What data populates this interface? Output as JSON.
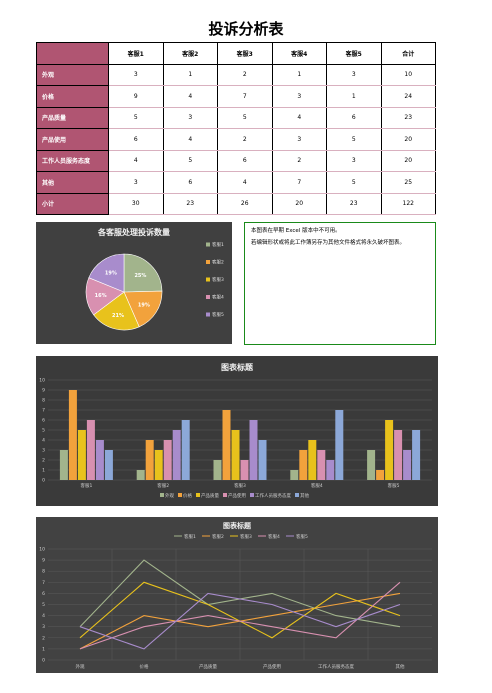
{
  "title": "投诉分析表",
  "table": {
    "headers": [
      "客服1",
      "客服2",
      "客服3",
      "客服4",
      "客服5",
      "合计"
    ],
    "rows": [
      {
        "label": "外观",
        "values": [
          3,
          1,
          2,
          1,
          3,
          10
        ]
      },
      {
        "label": "价格",
        "values": [
          9,
          4,
          7,
          3,
          1,
          24
        ]
      },
      {
        "label": "产品质量",
        "values": [
          5,
          3,
          5,
          4,
          6,
          23
        ]
      },
      {
        "label": "产品使用",
        "values": [
          6,
          4,
          2,
          3,
          5,
          20
        ]
      },
      {
        "label": "工作人员服务态度",
        "values": [
          4,
          5,
          6,
          2,
          3,
          20
        ]
      },
      {
        "label": "其他",
        "values": [
          3,
          6,
          4,
          7,
          5,
          25
        ]
      },
      {
        "label": "小计",
        "values": [
          30,
          23,
          26,
          20,
          23,
          122
        ]
      }
    ]
  },
  "note": {
    "line1": "本图表在早期 Excel 版本中不可用。",
    "line2": "若编辑形状或将此工作簿另存为其他文件格式将永久破坏图表。"
  },
  "colors": {
    "header_bg": "#b05572",
    "s1": "#a2b48c",
    "s2": "#f2a23c",
    "s3": "#e8c21c",
    "s4": "#d890b0",
    "s5": "#a88ccc",
    "s6": "#8ca8d8"
  },
  "chart_data": [
    {
      "type": "pie",
      "title": "各客服处理投诉数量",
      "categories": [
        "客服1",
        "客服2",
        "客服3",
        "客服4",
        "客服5"
      ],
      "values": [
        30,
        23,
        26,
        20,
        23
      ],
      "data_labels": [
        "25%",
        "19%",
        "21%",
        "16%",
        "19%"
      ],
      "legend": "right"
    },
    {
      "type": "bar",
      "title": "图表标题",
      "categories": [
        "客服1",
        "客服2",
        "客服3",
        "客服4",
        "客服5"
      ],
      "series": [
        {
          "name": "外观",
          "values": [
            3,
            1,
            2,
            1,
            3
          ]
        },
        {
          "name": "价格",
          "values": [
            9,
            4,
            7,
            3,
            1
          ]
        },
        {
          "name": "产品质量",
          "values": [
            5,
            3,
            5,
            4,
            6
          ]
        },
        {
          "name": "产品使用",
          "values": [
            6,
            4,
            2,
            3,
            5
          ]
        },
        {
          "name": "工作人员服务态度",
          "values": [
            4,
            5,
            6,
            2,
            3
          ]
        },
        {
          "name": "其他",
          "values": [
            3,
            6,
            4,
            7,
            5
          ]
        }
      ],
      "ylim": [
        0,
        10
      ],
      "yticks": [
        0,
        1,
        2,
        3,
        4,
        5,
        6,
        7,
        8,
        9,
        10
      ],
      "grid": true,
      "legend": "bottom"
    },
    {
      "type": "line",
      "title": "图表标题",
      "categories": [
        "外观",
        "价格",
        "产品质量",
        "产品使用",
        "工作人员服务态度",
        "其他"
      ],
      "series": [
        {
          "name": "客服1",
          "values": [
            3,
            9,
            5,
            6,
            4,
            3
          ]
        },
        {
          "name": "客服2",
          "values": [
            1,
            4,
            3,
            4,
            5,
            6
          ]
        },
        {
          "name": "客服3",
          "values": [
            2,
            7,
            5,
            2,
            6,
            4
          ]
        },
        {
          "name": "客服4",
          "values": [
            1,
            3,
            4,
            3,
            2,
            7
          ]
        },
        {
          "name": "客服5",
          "values": [
            3,
            1,
            6,
            5,
            3,
            5
          ]
        }
      ],
      "ylim": [
        0,
        10
      ],
      "yticks": [
        0,
        1,
        2,
        3,
        4,
        5,
        6,
        7,
        8,
        9,
        10
      ],
      "grid": true,
      "legend": "top"
    }
  ]
}
